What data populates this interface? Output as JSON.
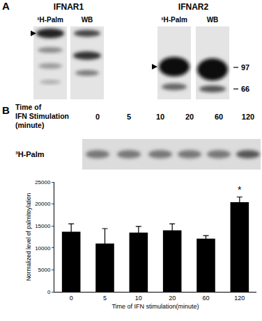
{
  "panel_a": {
    "label": "A",
    "groups": [
      {
        "title": "IFNAR1",
        "lanes": [
          "³H-Palm",
          "WB"
        ]
      },
      {
        "title": "IFNAR2",
        "lanes": [
          "³H-Palm",
          "WB"
        ]
      }
    ],
    "markers": [
      97,
      66
    ]
  },
  "panel_b": {
    "label": "B",
    "time_label": [
      "Time of",
      "IFN Stimulation",
      "(minute)"
    ],
    "times": [
      0,
      5,
      10,
      20,
      60,
      120
    ],
    "blot_label": "³H-Palm"
  },
  "chart_data": {
    "type": "bar",
    "categories": [
      "0",
      "5",
      "10",
      "20",
      "60",
      "120"
    ],
    "values": [
      13700,
      11000,
      13500,
      14000,
      12100,
      20400
    ],
    "error": [
      1800,
      3400,
      1400,
      1500,
      700,
      1200
    ],
    "color": "#000000",
    "x_label": "Time of IFN stimulation(minute)",
    "y_label": "Normalized level of palmitoylation",
    "ylim": [
      0,
      25000
    ],
    "yticks": [
      0,
      5000,
      10000,
      15000,
      20000,
      25000
    ],
    "annotations": [
      {
        "category": "120",
        "text": "*"
      }
    ]
  }
}
